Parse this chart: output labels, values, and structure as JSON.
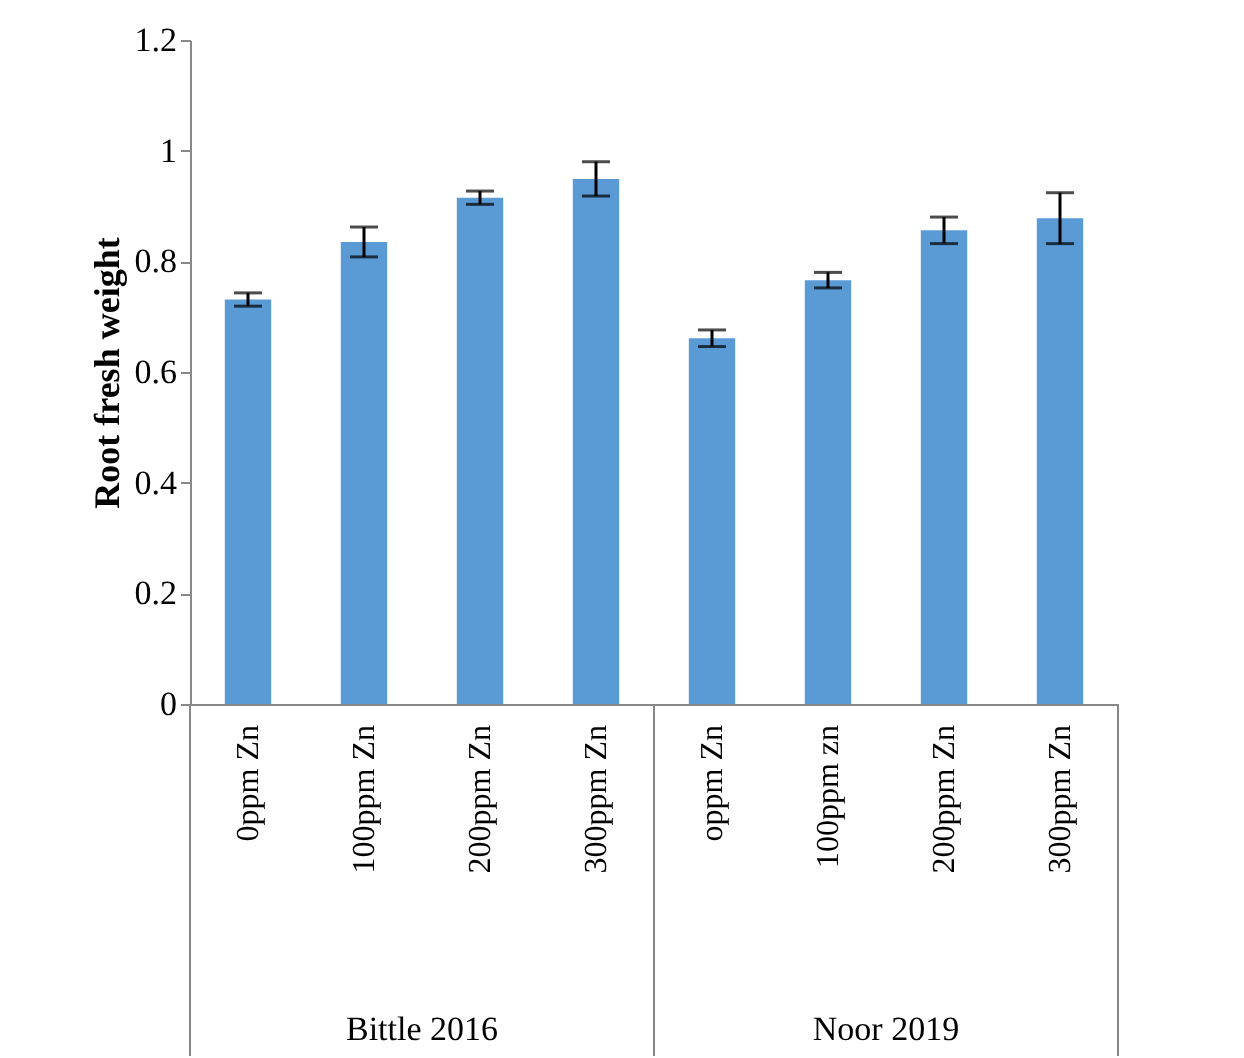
{
  "chart_data": {
    "type": "bar",
    "ylabel": "Root fresh weight",
    "categories": [
      "0ppm   Zn",
      "100ppm  Zn",
      "200ppm Zn",
      "300ppm Zn",
      "oppm   Zn",
      "100ppm zn",
      "200ppm Zn",
      "300ppm Zn"
    ],
    "values": [
      0.731,
      0.835,
      0.915,
      0.949,
      0.661,
      0.766,
      0.856,
      0.878
    ],
    "errors": [
      0.012,
      0.027,
      0.012,
      0.031,
      0.015,
      0.014,
      0.024,
      0.046
    ],
    "color": "#5b9bd5",
    "ylim": [
      0,
      1.2
    ],
    "yticks": [
      0,
      0.2,
      0.4,
      0.6,
      0.8,
      1,
      1.2
    ],
    "grid": false,
    "annotations": [
      "Bittle 2016",
      "Noor 2019"
    ]
  }
}
